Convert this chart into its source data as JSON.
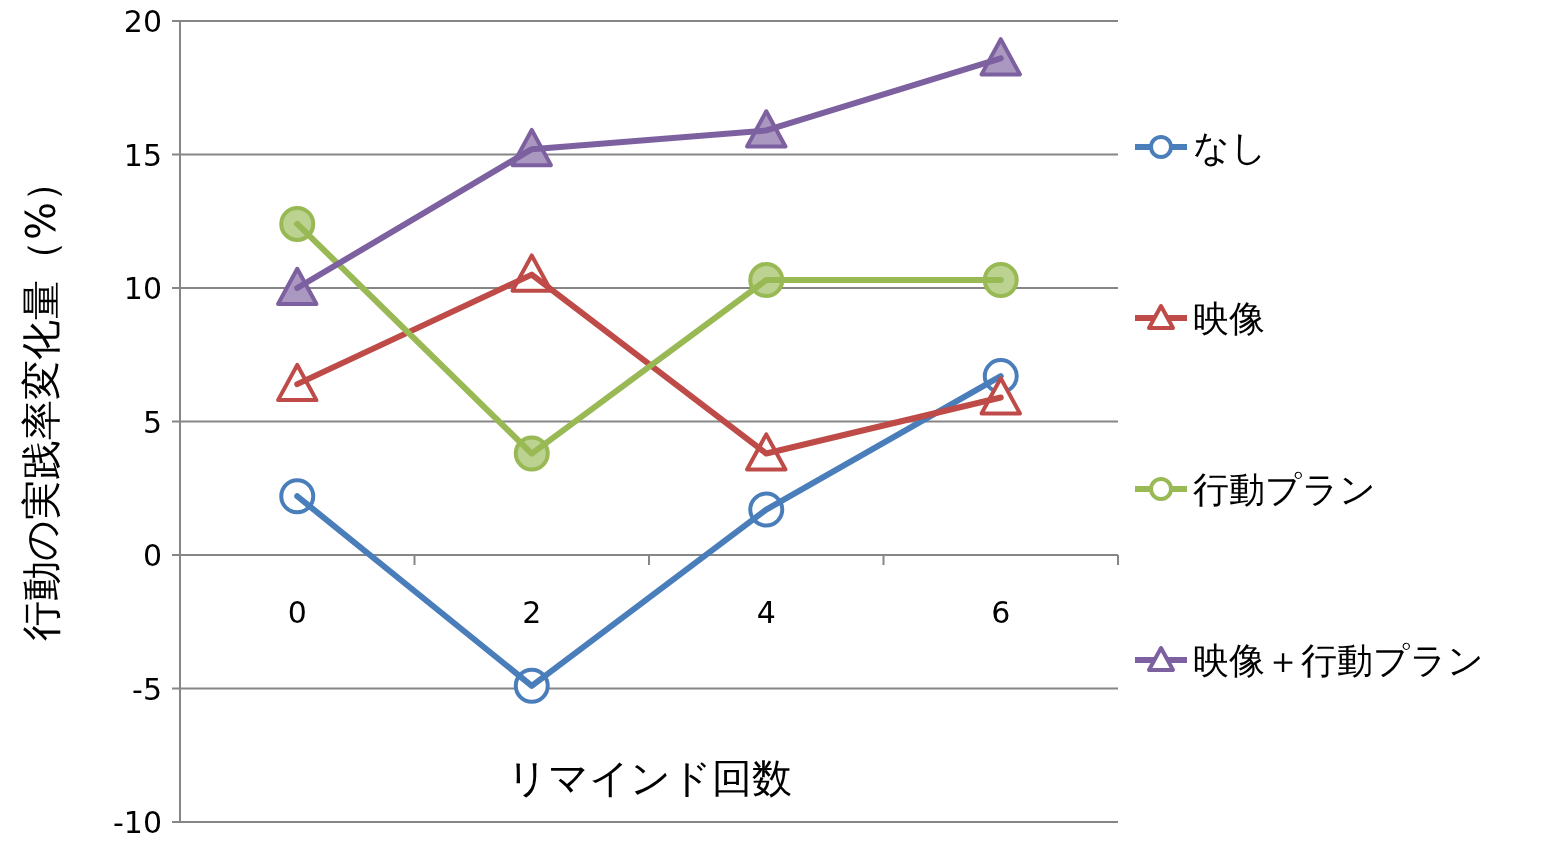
{
  "chart_data": {
    "type": "line",
    "xlabel": "リマインド回数",
    "ylabel": "行動の実践率変化量（%）",
    "categories": [
      "0",
      "2",
      "4",
      "6"
    ],
    "series": [
      {
        "name": "なし",
        "color": "#4a7ebb",
        "marker": "circle",
        "values": [
          2.2,
          -4.9,
          1.7,
          6.7
        ]
      },
      {
        "name": "映像",
        "color": "#be4b48",
        "marker": "triangle",
        "values": [
          6.4,
          10.5,
          3.8,
          5.9
        ]
      },
      {
        "name": "行動プラン",
        "color": "#98b954",
        "marker": "circle",
        "values": [
          12.4,
          3.8,
          10.3,
          10.3
        ]
      },
      {
        "name": "映像＋行動プラン",
        "color": "#7d60a0",
        "marker": "triangle",
        "values": [
          10.0,
          15.2,
          15.9,
          18.6
        ]
      }
    ],
    "ylim": [
      -10,
      20
    ],
    "yticks": [
      -10,
      -5,
      0,
      5,
      10,
      15,
      20
    ],
    "grid": "y",
    "legend": "right",
    "line_style": "solid"
  }
}
